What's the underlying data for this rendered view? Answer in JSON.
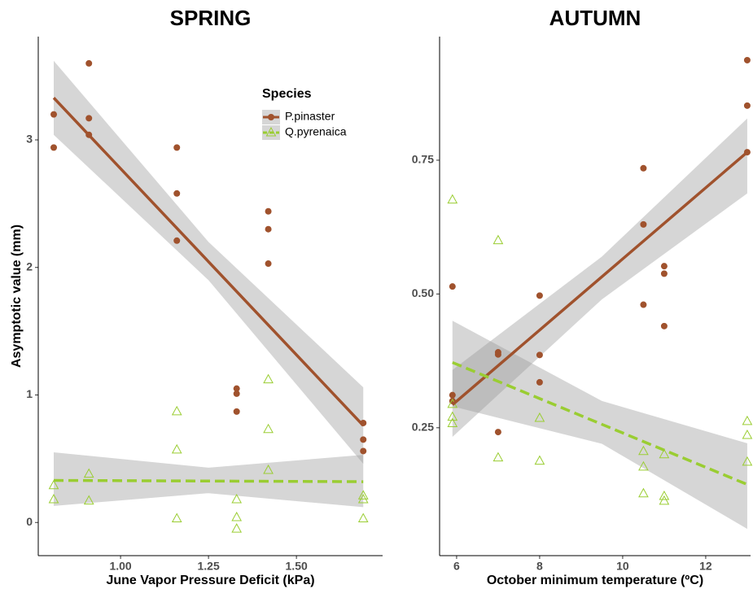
{
  "chart_data": [
    {
      "type": "scatter",
      "title": "SPRING",
      "xlabel": "June Vapor Pressure Deficit (kPa)",
      "ylabel": "Asymptotic value (mm)",
      "xlim": [
        0.766,
        1.745
      ],
      "ylim": [
        -0.26,
        3.81
      ],
      "xticks": [
        {
          "value": 1,
          "label": "1.00"
        },
        1.25,
        {
          "value": 1.5,
          "label": "1.50"
        }
      ],
      "yticks": [
        0,
        1,
        2,
        3
      ],
      "legend": "upper-right",
      "legend_title": "Species",
      "series": [
        {
          "name": "P.pinaster",
          "color": "#a0522d",
          "marker": "circle",
          "dashed": false,
          "x": [
            0.81,
            0.81,
            0.91,
            0.91,
            0.91,
            1.16,
            1.16,
            1.16,
            1.33,
            1.33,
            1.33,
            1.42,
            1.42,
            1.42,
            1.69,
            1.69,
            1.69
          ],
          "values": [
            3.2,
            2.94,
            3.6,
            3.17,
            3.04,
            2.94,
            2.58,
            2.21,
            1.05,
            1.01,
            0.87,
            2.44,
            2.3,
            2.03,
            0.78,
            0.65,
            0.56
          ],
          "fit": {
            "x": [
              0.81,
              1.69
            ],
            "values": [
              3.33,
              0.76
            ]
          },
          "band": {
            "x": [
              0.81,
              1.25,
              1.69
            ],
            "lower": [
              3.04,
              1.9,
              0.46
            ],
            "upper": [
              3.62,
              2.2,
              1.06
            ]
          }
        },
        {
          "name": "Q.pyrenaica",
          "color": "#9acd32",
          "marker": "triangle",
          "dashed": true,
          "x": [
            0.81,
            0.81,
            0.91,
            0.91,
            1.16,
            1.16,
            1.16,
            1.33,
            1.33,
            1.33,
            1.42,
            1.42,
            1.42,
            1.69,
            1.69,
            1.69
          ],
          "values": [
            0.29,
            0.18,
            0.38,
            0.17,
            0.87,
            0.57,
            0.03,
            0.18,
            0.04,
            -0.05,
            1.12,
            0.73,
            0.41,
            0.21,
            0.18,
            0.03
          ],
          "fit": {
            "x": [
              0.81,
              1.69
            ],
            "values": [
              0.33,
              0.32
            ]
          },
          "band": {
            "x": [
              0.81,
              1.25,
              1.69
            ],
            "lower": [
              0.13,
              0.23,
              0.12
            ],
            "upper": [
              0.55,
              0.43,
              0.53
            ]
          }
        }
      ]
    },
    {
      "type": "scatter",
      "title": "AUTUMN",
      "xlabel": "October minimum temperature (ºC)",
      "xlim": [
        5.59,
        13.08
      ],
      "ylim": [
        0.011,
        0.981
      ],
      "xticks": [
        6,
        8,
        10,
        12
      ],
      "yticks": [
        0.25,
        {
          "value": 0.5,
          "label": "0.50"
        },
        0.75
      ],
      "series": [
        {
          "color": "#a0522d",
          "marker": "circle",
          "dashed": false,
          "x": [
            5.9,
            5.9,
            5.9,
            7,
            7,
            7,
            8,
            8,
            8,
            10.5,
            10.5,
            10.5,
            11,
            11,
            11,
            13,
            13,
            13
          ],
          "values": [
            0.514,
            0.311,
            0.3,
            0.391,
            0.387,
            0.242,
            0.497,
            0.386,
            0.335,
            0.735,
            0.63,
            0.48,
            0.552,
            0.538,
            0.44,
            0.937,
            0.852,
            0.765
          ],
          "fit": {
            "x": [
              5.9,
              13
            ],
            "values": [
              0.293,
              0.765
            ]
          },
          "band": {
            "x": [
              5.9,
              9.5,
              13
            ],
            "lower": [
              0.233,
              0.49,
              0.688
            ],
            "upper": [
              0.358,
              0.57,
              0.828
            ]
          }
        },
        {
          "color": "#9acd32",
          "marker": "triangle",
          "dashed": true,
          "x": [
            5.9,
            5.9,
            5.9,
            5.9,
            7,
            7,
            8,
            8,
            10.5,
            10.5,
            10.5,
            11,
            11,
            11,
            13,
            13,
            13
          ],
          "values": [
            0.676,
            0.294,
            0.27,
            0.258,
            0.6,
            0.194,
            0.268,
            0.188,
            0.206,
            0.177,
            0.127,
            0.2,
            0.122,
            0.113,
            0.262,
            0.236,
            0.186
          ],
          "fit": {
            "x": [
              5.9,
              13
            ],
            "values": [
              0.372,
              0.144
            ]
          },
          "band": {
            "x": [
              5.9,
              9.5,
              13
            ],
            "lower": [
              0.29,
              0.22,
              0.061
            ],
            "upper": [
              0.45,
              0.3,
              0.221
            ]
          }
        }
      ]
    }
  ]
}
